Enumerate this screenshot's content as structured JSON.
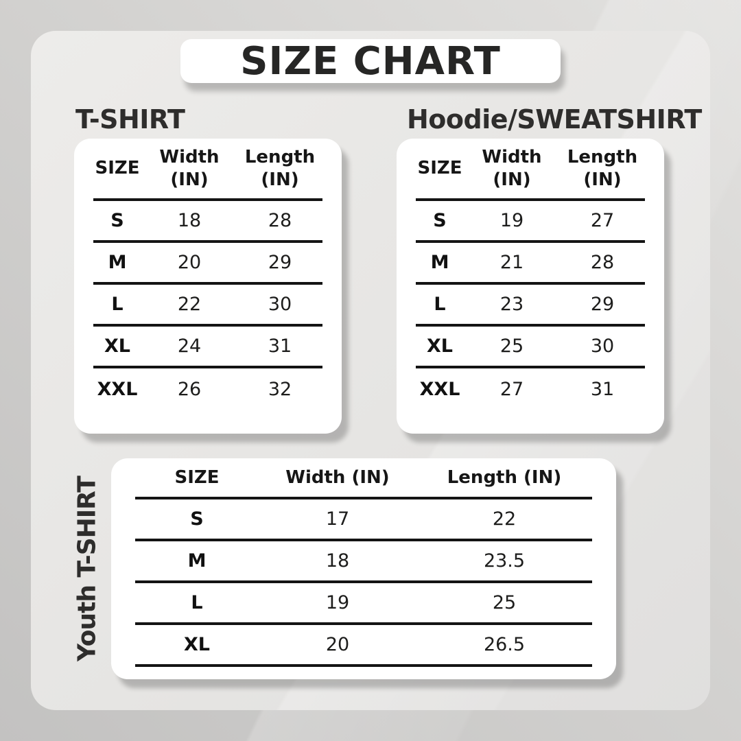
{
  "title": "SIZE CHART",
  "tshirt": {
    "heading": "T-SHIRT",
    "header": {
      "size": "SIZE",
      "width_label": "Width",
      "width_unit": "(IN)",
      "length_label": "Length",
      "length_unit": "(IN)"
    },
    "rows": [
      {
        "size": "S",
        "width": "18",
        "length": "28"
      },
      {
        "size": "M",
        "width": "20",
        "length": "29"
      },
      {
        "size": "L",
        "width": "22",
        "length": "30"
      },
      {
        "size": "XL",
        "width": "24",
        "length": "31"
      },
      {
        "size": "XXL",
        "width": "26",
        "length": "32"
      }
    ]
  },
  "hoodie": {
    "heading": "Hoodie/SWEATSHIRT",
    "header": {
      "size": "SIZE",
      "width_label": "Width",
      "width_unit": "(IN)",
      "length_label": "Length",
      "length_unit": "(IN)"
    },
    "rows": [
      {
        "size": "S",
        "width": "19",
        "length": "27"
      },
      {
        "size": "M",
        "width": "21",
        "length": "28"
      },
      {
        "size": "L",
        "width": "23",
        "length": "29"
      },
      {
        "size": "XL",
        "width": "25",
        "length": "30"
      },
      {
        "size": "XXL",
        "width": "27",
        "length": "31"
      }
    ]
  },
  "youth": {
    "heading": "Youth T-SHIRT",
    "header": {
      "size": "SIZE",
      "width": "Width (IN)",
      "length": "Length (IN)"
    },
    "rows": [
      {
        "size": "S",
        "width": "17",
        "length": "22"
      },
      {
        "size": "M",
        "width": "18",
        "length": "23.5"
      },
      {
        "size": "L",
        "width": "19",
        "length": "25"
      },
      {
        "size": "XL",
        "width": "20",
        "length": "26.5"
      }
    ]
  },
  "colors": {
    "text_dark": "#2e2d2c",
    "card": "#ffffff",
    "line": "#141414",
    "panel": "#e6e5e3",
    "background": "#c9c8c7"
  }
}
